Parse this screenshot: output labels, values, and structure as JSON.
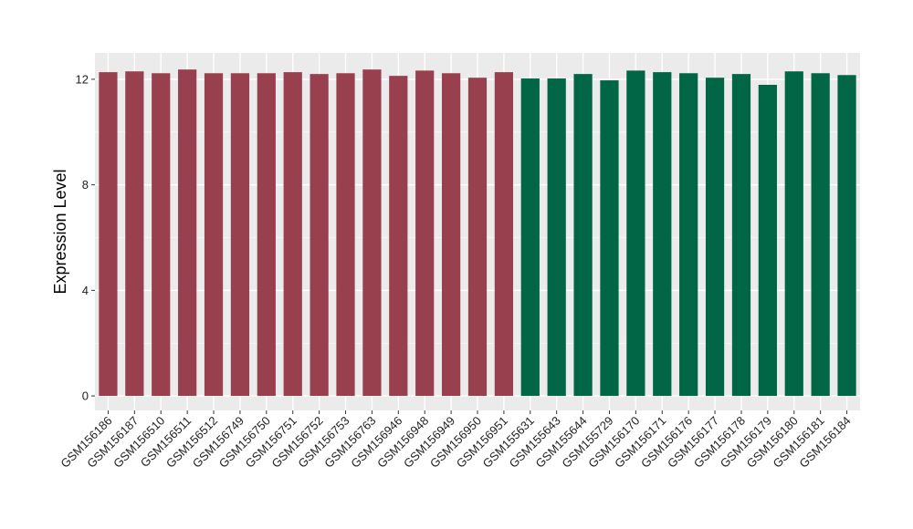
{
  "chart_data": {
    "type": "bar",
    "title": "",
    "xlabel": "",
    "ylabel": "Expression Level",
    "ylim": [
      -0.55,
      13.0
    ],
    "yticks": [
      0,
      4,
      8,
      12
    ],
    "grid": true,
    "legend": "none",
    "categories": [
      "GSM156186",
      "GSM156187",
      "GSM156510",
      "GSM156511",
      "GSM156512",
      "GSM156749",
      "GSM156750",
      "GSM156751",
      "GSM156752",
      "GSM156753",
      "GSM156763",
      "GSM156946",
      "GSM156948",
      "GSM156949",
      "GSM156950",
      "GSM156951",
      "GSM155631",
      "GSM155643",
      "GSM155644",
      "GSM155729",
      "GSM156170",
      "GSM156171",
      "GSM156176",
      "GSM156177",
      "GSM156178",
      "GSM156179",
      "GSM156180",
      "GSM156181",
      "GSM156184"
    ],
    "values": [
      12.27,
      12.3,
      12.23,
      12.37,
      12.23,
      12.23,
      12.23,
      12.27,
      12.2,
      12.23,
      12.37,
      12.13,
      12.33,
      12.23,
      12.06,
      12.27,
      12.03,
      12.03,
      12.2,
      11.96,
      12.33,
      12.27,
      12.23,
      12.06,
      12.2,
      11.79,
      12.3,
      12.23,
      12.16
    ],
    "bar_colors": [
      "#99404F",
      "#99404F",
      "#99404F",
      "#99404F",
      "#99404F",
      "#99404F",
      "#99404F",
      "#99404F",
      "#99404F",
      "#99404F",
      "#99404F",
      "#99404F",
      "#99404F",
      "#99404F",
      "#99404F",
      "#99404F",
      "#006645",
      "#006645",
      "#006645",
      "#006645",
      "#006645",
      "#006645",
      "#006645",
      "#006645",
      "#006645",
      "#006645",
      "#006645",
      "#006645",
      "#006645"
    ],
    "panel_background": "#EBEBEB",
    "grid_color": "#FFFFFF"
  }
}
